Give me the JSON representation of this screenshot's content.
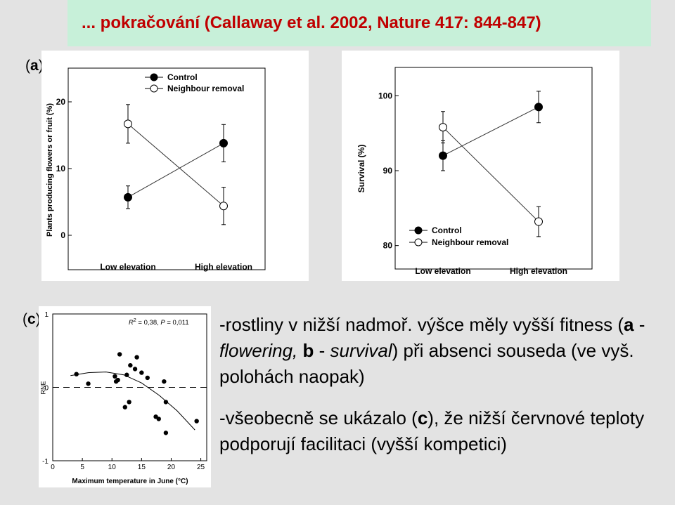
{
  "header": {
    "title": "... pokračování (Callaway et al. 2002, Nature 417: 844-847)"
  },
  "panels": {
    "a": {
      "pre": "(",
      "letter": "a",
      "post": ")"
    },
    "b": {
      "pre": "(",
      "letter": "b",
      "post": ")"
    },
    "c": {
      "pre": "(",
      "letter": "c",
      "post": ")"
    }
  },
  "chart_data": [
    {
      "id": "a",
      "type": "line",
      "categories": [
        "Low elevation",
        "High elevation"
      ],
      "ylabel": "Plants producing flowers or fruit (%)",
      "ylim": [
        -2,
        24
      ],
      "yticks": [
        "0",
        "10",
        "20"
      ],
      "ytick_values": [
        0,
        10,
        20
      ],
      "legend": "top-left",
      "series": [
        {
          "name": "Control",
          "marker": "filled",
          "values": [
            5.7,
            13.8
          ],
          "err": [
            1.7,
            2.8
          ]
        },
        {
          "name": "Neighbour removal",
          "marker": "open",
          "values": [
            16.7,
            4.4
          ],
          "err": [
            2.9,
            2.8
          ]
        }
      ]
    },
    {
      "id": "b",
      "type": "line",
      "categories": [
        "Low elevation",
        "High elevation"
      ],
      "ylabel": "Survival (%)",
      "ylim": [
        78,
        102
      ],
      "yticks": [
        "80",
        "90",
        "100"
      ],
      "ytick_values": [
        80,
        90,
        100
      ],
      "legend": "bottom-left",
      "series": [
        {
          "name": "Control",
          "marker": "filled",
          "values": [
            92,
            98.5
          ],
          "err": [
            2.0,
            2.1
          ]
        },
        {
          "name": "Neighbour removal",
          "marker": "open",
          "values": [
            95.8,
            83.2
          ],
          "err": [
            2.1,
            2.0
          ]
        }
      ]
    },
    {
      "id": "c",
      "type": "scatter",
      "xlabel": "Maximum temperature in June (°C)",
      "ylabel": "RNE",
      "xlim": [
        0,
        26
      ],
      "ylim": [
        -1,
        1
      ],
      "xticks": [
        "0",
        "5",
        "10",
        "15",
        "20",
        "25"
      ],
      "xtick_values": [
        0,
        5,
        10,
        15,
        20,
        25
      ],
      "yticks": [
        "-1",
        "0",
        "1"
      ],
      "ytick_values": [
        -1,
        0,
        1
      ],
      "annotation": {
        "r2_label": "R",
        "r2_exp": "2",
        "r2_value": " = 0,38, ",
        "p_label": "P",
        "p_value": " = 0,011"
      },
      "points": [
        [
          4,
          0.18
        ],
        [
          6,
          0.05
        ],
        [
          10.5,
          0.15
        ],
        [
          10.7,
          0.08
        ],
        [
          11,
          0.1
        ],
        [
          11.3,
          0.45
        ],
        [
          12.2,
          -0.27
        ],
        [
          12.5,
          0.17
        ],
        [
          12.9,
          -0.2
        ],
        [
          13.1,
          0.3
        ],
        [
          13.9,
          0.25
        ],
        [
          14.2,
          0.41
        ],
        [
          15,
          0.2
        ],
        [
          16,
          0.13
        ],
        [
          17.4,
          -0.4
        ],
        [
          17.9,
          -0.43
        ],
        [
          18.8,
          0.08
        ],
        [
          19.1,
          -0.2
        ],
        [
          19.1,
          -0.62
        ],
        [
          24.3,
          -0.46
        ]
      ],
      "fit": [
        [
          3,
          0.16
        ],
        [
          6,
          0.2
        ],
        [
          9,
          0.21
        ],
        [
          12,
          0.17
        ],
        [
          15,
          0.06
        ],
        [
          18,
          -0.11
        ],
        [
          21,
          -0.32
        ],
        [
          24,
          -0.58
        ]
      ],
      "reference_line": 0
    }
  ],
  "bullets": [
    {
      "parts": [
        "-rostliny v nižší nadmoř. výšce měly vyšší fitness (",
        "a",
        " - ",
        "flowering,",
        " ",
        "b",
        " - ",
        "survival",
        ") při absenci souseda (ve vyš. polohách naopak)"
      ]
    },
    {
      "parts": [
        "-všeobecně se ukázalo (",
        "c",
        "), že nižší červnové teploty podporují facilitaci (vyšší kompetici)"
      ]
    }
  ]
}
